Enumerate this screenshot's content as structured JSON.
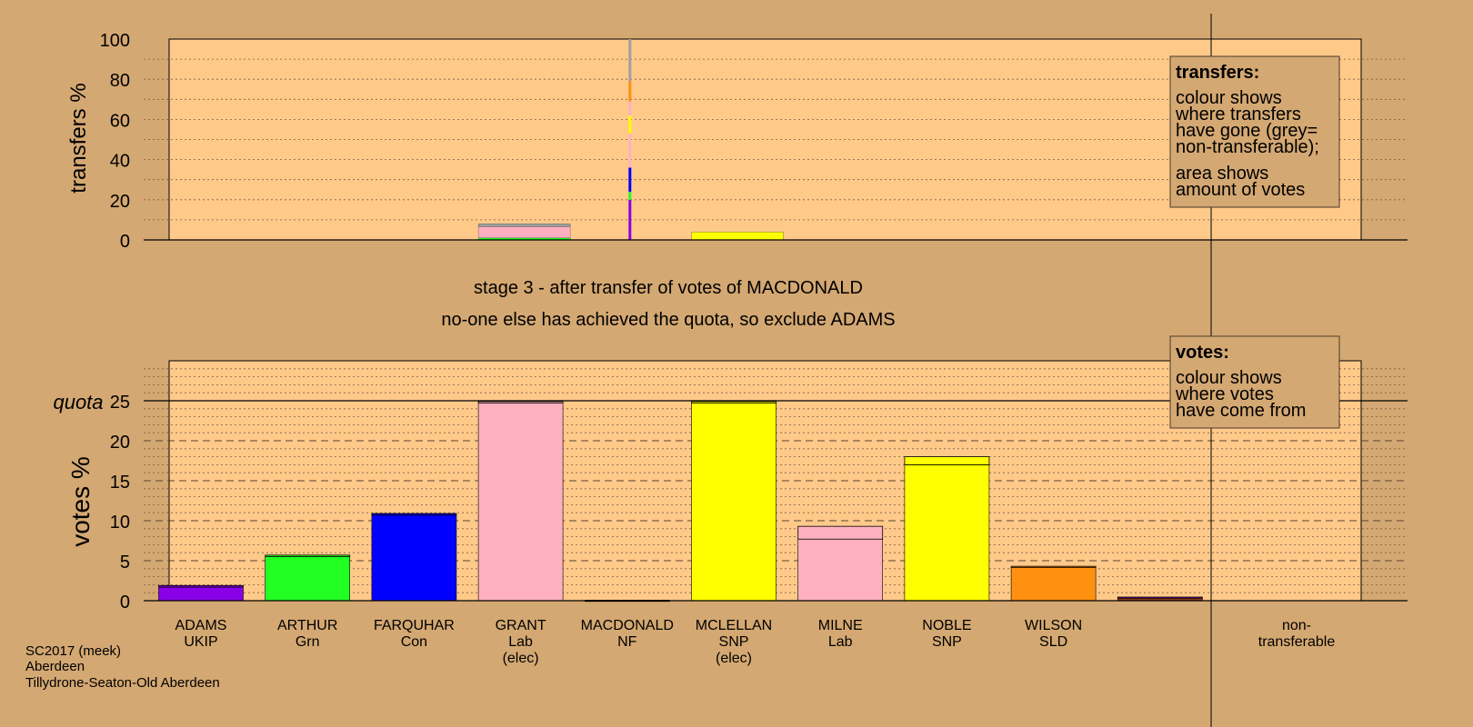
{
  "colors": {
    "background": "#d4a872",
    "plot_bg": "#ffc98a",
    "purple": "#8a00e6",
    "green": "#22ff22",
    "blue": "#0000ff",
    "pink": "#ffb0c0",
    "yellow": "#ffff00",
    "orange": "#ff9010",
    "grey": "#a0a0a0",
    "brown": "#8b3a1a"
  },
  "caption": {
    "line1": "stage 3 - after transfer of votes of MACDONALD",
    "line2": "no-one else has achieved the quota, so exclude ADAMS"
  },
  "footer": [
    "SC2017 (meek)",
    "Aberdeen",
    "Tillydrone-Seaton-Old Aberdeen"
  ],
  "legend_transfers": {
    "title": "transfers:",
    "lines_a": [
      "colour shows",
      "where transfers",
      "have gone (grey=",
      "non-transferable);"
    ],
    "lines_b": [
      "area shows",
      "amount of votes"
    ]
  },
  "legend_votes": {
    "title": "votes:",
    "lines": [
      "colour shows",
      "where votes",
      "have come from"
    ]
  },
  "chart_data": [
    {
      "type": "bar",
      "name": "transfers",
      "ylabel": "transfers %",
      "ylim": [
        0,
        100
      ],
      "yticks": [
        0,
        20,
        40,
        60,
        80,
        100
      ],
      "grid": true,
      "categories": [
        "ADAMS",
        "ARTHUR",
        "FARQUHAR",
        "GRANT",
        "MACDONALD",
        "MCLELLAN",
        "MILNE",
        "NOBLE",
        "WILSON",
        "non-transferable"
      ],
      "bars": [
        {
          "category": "GRANT",
          "segments": [
            {
              "color": "green",
              "value": 1.0
            },
            {
              "color": "pink",
              "value": 5.6
            },
            {
              "color": "grey",
              "value": 1.4
            }
          ]
        },
        {
          "category": "MCLELLAN",
          "segments": [
            {
              "color": "yellow",
              "value": 4.0
            }
          ]
        }
      ],
      "source_line": {
        "category": "MACDONALD",
        "segments": [
          {
            "color": "purple",
            "from": 0,
            "to": 20
          },
          {
            "color": "green",
            "from": 20,
            "to": 24
          },
          {
            "color": "blue",
            "from": 24,
            "to": 36
          },
          {
            "color": "pink",
            "from": 36,
            "to": 53
          },
          {
            "color": "yellow",
            "from": 53,
            "to": 62
          },
          {
            "color": "pink",
            "from": 62,
            "to": 69
          },
          {
            "color": "orange",
            "from": 69,
            "to": 79
          },
          {
            "color": "grey",
            "from": 79,
            "to": 100
          }
        ]
      }
    },
    {
      "type": "bar",
      "name": "votes",
      "ylabel": "votes %",
      "ylim": [
        0,
        30
      ],
      "yticks": [
        0,
        5,
        10,
        15,
        20,
        25
      ],
      "quota": 25,
      "quota_label": "quota",
      "grid": true,
      "categories": [
        {
          "name": "ADAMS",
          "party": "UKIP",
          "note": ""
        },
        {
          "name": "ARTHUR",
          "party": "Grn",
          "note": ""
        },
        {
          "name": "FARQUHAR",
          "party": "Con",
          "note": ""
        },
        {
          "name": "GRANT",
          "party": "Lab",
          "note": "(elec)"
        },
        {
          "name": "MACDONALD",
          "party": "NF",
          "note": ""
        },
        {
          "name": "MCLELLAN",
          "party": "SNP",
          "note": "(elec)"
        },
        {
          "name": "MILNE",
          "party": "Lab",
          "note": ""
        },
        {
          "name": "NOBLE",
          "party": "SNP",
          "note": ""
        },
        {
          "name": "WILSON",
          "party": "SLD",
          "note": ""
        },
        {
          "name": "non-",
          "party": "transferable",
          "note": ""
        }
      ],
      "values": [
        {
          "base": 1.7,
          "base_color": "purple",
          "extra": 0.2,
          "extra_color": "purple"
        },
        {
          "base": 5.5,
          "base_color": "green",
          "extra": 0.2,
          "extra_color": "green"
        },
        {
          "base": 10.7,
          "base_color": "blue",
          "extra": 0.2,
          "extra_color": "blue"
        },
        {
          "base": 24.7,
          "base_color": "pink",
          "extra": 0.2,
          "extra_color": "pink"
        },
        {
          "base": 0.0,
          "base_color": "purple",
          "extra": 0.05,
          "extra_color": "brown"
        },
        {
          "base": 24.7,
          "base_color": "yellow",
          "extra": 0.2,
          "extra_color": "yellow"
        },
        {
          "base": 7.7,
          "base_color": "pink",
          "extra": 1.6,
          "extra_color": "pink"
        },
        {
          "base": 17.0,
          "base_color": "yellow",
          "extra": 1.0,
          "extra_color": "yellow"
        },
        {
          "base": 4.2,
          "base_color": "orange",
          "extra": 0.1,
          "extra_color": "orange"
        },
        {
          "base": 0.4,
          "base_color": "brown",
          "extra": 0.05,
          "extra_color": "purple"
        }
      ]
    }
  ]
}
